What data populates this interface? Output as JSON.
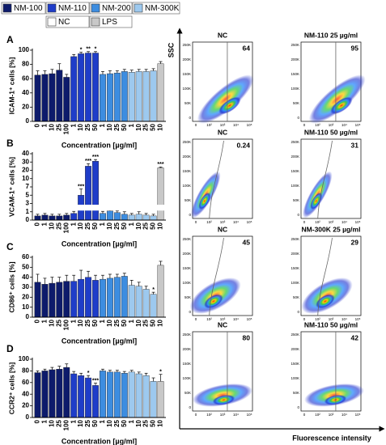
{
  "legend": [
    {
      "name": "NM-100",
      "color": "#0d1b6b"
    },
    {
      "name": "NM-110",
      "color": "#1f3dc9"
    },
    {
      "name": "NM-200",
      "color": "#3d8de0"
    },
    {
      "name": "NM-300K",
      "color": "#9dc9ef"
    },
    {
      "name": "NC",
      "color": "#ffffff"
    },
    {
      "name": "LPS",
      "color": "#c8c8c8"
    }
  ],
  "chart_data": [
    {
      "type": "bar",
      "panel": "A",
      "ylabel": "ICAM-1⁺ cells [%]",
      "xlabel": "Concentration [µg/ml]",
      "ylim": [
        0,
        100
      ],
      "yticks": [
        0,
        20,
        40,
        60,
        80,
        100
      ],
      "groups": [
        {
          "color": "#0d1b6b",
          "categories": [
            "0",
            "1",
            "10",
            "25",
            "100"
          ],
          "values": [
            65,
            66,
            67,
            72,
            62
          ],
          "errors": [
            6,
            5,
            6,
            9,
            4
          ]
        },
        {
          "color": "#1f3dc9",
          "categories": [
            "1",
            "10",
            "25",
            "50"
          ],
          "values": [
            91,
            95,
            96,
            96
          ],
          "errors": [
            3,
            2,
            2,
            2
          ],
          "annotations": [
            {
              "index": 1,
              "text": "*"
            },
            {
              "index": 2,
              "text": "**"
            },
            {
              "index": 3,
              "text": "*"
            }
          ]
        },
        {
          "color": "#3d8de0",
          "categories": [
            "1",
            "10",
            "25",
            "50"
          ],
          "values": [
            66,
            67,
            68,
            70
          ],
          "errors": [
            4,
            4,
            3,
            3
          ]
        },
        {
          "color": "#9dc9ef",
          "categories": [
            "1",
            "10",
            "25",
            "50"
          ],
          "values": [
            69,
            70,
            70,
            71
          ],
          "errors": [
            3,
            3,
            3,
            3
          ]
        },
        {
          "color": "#c8c8c8",
          "categories": [
            "10"
          ],
          "values": [
            81
          ],
          "errors": [
            3
          ]
        }
      ]
    },
    {
      "type": "bar",
      "panel": "B",
      "ylabel": "VCAM-1⁺ cells [%]",
      "xlabel": "Concentration [µg/ml]",
      "ylim": [
        0,
        40
      ],
      "yticks": [
        0,
        1,
        3,
        5,
        7,
        10,
        20,
        30,
        40
      ],
      "yscale": "piecewise",
      "axis_break": [
        1,
        3
      ],
      "groups": [
        {
          "color": "#0d1b6b",
          "categories": [
            "0",
            "1",
            "10",
            "25",
            "100"
          ],
          "values": [
            0.5,
            0.6,
            0.5,
            0.5,
            0.6
          ],
          "errors": [
            0.2,
            0.2,
            0.2,
            0.2,
            0.2
          ]
        },
        {
          "color": "#1f3dc9",
          "categories": [
            "1",
            "10",
            "25",
            "50"
          ],
          "values": [
            0.8,
            5,
            25,
            31
          ],
          "errors": [
            0.3,
            1.5,
            3,
            2
          ],
          "annotations": [
            {
              "index": 1,
              "text": "***"
            },
            {
              "index": 2,
              "text": "***"
            },
            {
              "index": 3,
              "text": "***"
            }
          ]
        },
        {
          "color": "#3d8de0",
          "categories": [
            "1",
            "10",
            "25",
            "50"
          ],
          "values": [
            0.8,
            1.2,
            0.9,
            0.7
          ],
          "errors": [
            0.3,
            0.5,
            0.3,
            0.3
          ]
        },
        {
          "color": "#9dc9ef",
          "categories": [
            "1",
            "10",
            "25",
            "50"
          ],
          "values": [
            0.6,
            0.7,
            0.6,
            0.5
          ],
          "errors": [
            0.2,
            0.3,
            0.2,
            0.2
          ]
        },
        {
          "color": "#c8c8c8",
          "categories": [
            "10"
          ],
          "values": [
            23
          ],
          "errors": [
            1
          ],
          "annotations": [
            {
              "index": 0,
              "text": "***"
            }
          ]
        }
      ]
    },
    {
      "type": "bar",
      "panel": "C",
      "ylabel": "CD86⁺ cells [%]",
      "xlabel": "Concentration [µg/ml]",
      "ylim": [
        0,
        60
      ],
      "yticks": [
        0,
        10,
        20,
        30,
        40,
        50,
        60
      ],
      "groups": [
        {
          "color": "#0d1b6b",
          "categories": [
            "0",
            "1",
            "10",
            "25",
            "100"
          ],
          "values": [
            35,
            33,
            34,
            35,
            36
          ],
          "errors": [
            8,
            6,
            6,
            5,
            6
          ]
        },
        {
          "color": "#1f3dc9",
          "categories": [
            "1",
            "10",
            "25",
            "50"
          ],
          "values": [
            36,
            38,
            40,
            37
          ],
          "errors": [
            6,
            9,
            6,
            5
          ]
        },
        {
          "color": "#3d8de0",
          "categories": [
            "1",
            "10",
            "25",
            "50"
          ],
          "values": [
            38,
            39,
            40,
            41
          ],
          "errors": [
            4,
            4,
            3,
            3
          ]
        },
        {
          "color": "#9dc9ef",
          "categories": [
            "1",
            "10",
            "25",
            "50"
          ],
          "values": [
            32,
            31,
            28,
            23
          ],
          "errors": [
            5,
            4,
            3,
            2
          ],
          "annotations": [
            {
              "index": 3,
              "text": "*"
            }
          ]
        },
        {
          "color": "#c8c8c8",
          "categories": [
            "10"
          ],
          "values": [
            52
          ],
          "errors": [
            4
          ]
        }
      ]
    },
    {
      "type": "bar",
      "panel": "D",
      "ylabel": "CCR2⁺ cells [%]",
      "xlabel": "Concentration [µg/ml]",
      "ylim": [
        0,
        100
      ],
      "yticks": [
        0,
        20,
        40,
        60,
        80,
        100
      ],
      "groups": [
        {
          "color": "#0d1b6b",
          "categories": [
            "0",
            "1",
            "10",
            "25",
            "100"
          ],
          "values": [
            77,
            80,
            82,
            83,
            86
          ],
          "errors": [
            3,
            3,
            4,
            5,
            6
          ]
        },
        {
          "color": "#1f3dc9",
          "categories": [
            "1",
            "10",
            "25",
            "50"
          ],
          "values": [
            75,
            72,
            68,
            55
          ],
          "errors": [
            4,
            4,
            4,
            4
          ],
          "annotations": [
            {
              "index": 2,
              "text": "*"
            },
            {
              "index": 3,
              "text": "***"
            }
          ]
        },
        {
          "color": "#3d8de0",
          "categories": [
            "1",
            "10",
            "25",
            "50"
          ],
          "values": [
            80,
            78,
            78,
            76
          ],
          "errors": [
            3,
            3,
            3,
            3
          ]
        },
        {
          "color": "#9dc9ef",
          "categories": [
            "1",
            "10",
            "25",
            "50"
          ],
          "values": [
            78,
            75,
            72,
            62
          ],
          "errors": [
            3,
            3,
            4,
            6
          ]
        },
        {
          "color": "#c8c8c8",
          "categories": [
            "10"
          ],
          "values": [
            62
          ],
          "errors": [
            12
          ],
          "annotations": [
            {
              "index": 0,
              "text": "*"
            }
          ]
        }
      ]
    }
  ],
  "flow": {
    "y_label": "SSC",
    "x_label": "Fluorescence intensity",
    "yticks": [
      "250K",
      "200K",
      "150K",
      "100K",
      "50K",
      "0"
    ],
    "xticks": [
      "0",
      "10²",
      "10³",
      "10⁴",
      "10⁵"
    ],
    "plots": [
      {
        "title": "NC",
        "value": 64
      },
      {
        "title": "NM-110  25 µg/ml",
        "value": 95
      },
      {
        "title": "NC",
        "value": 0.24
      },
      {
        "title": "NM-110  50 µg/ml",
        "value": 31
      },
      {
        "title": "NC",
        "value": 45
      },
      {
        "title": "NM-300K  25 µg/ml",
        "value": 29
      },
      {
        "title": "NC",
        "value": 80
      },
      {
        "title": "NM-110  50 µg/ml",
        "value": 42
      }
    ]
  }
}
